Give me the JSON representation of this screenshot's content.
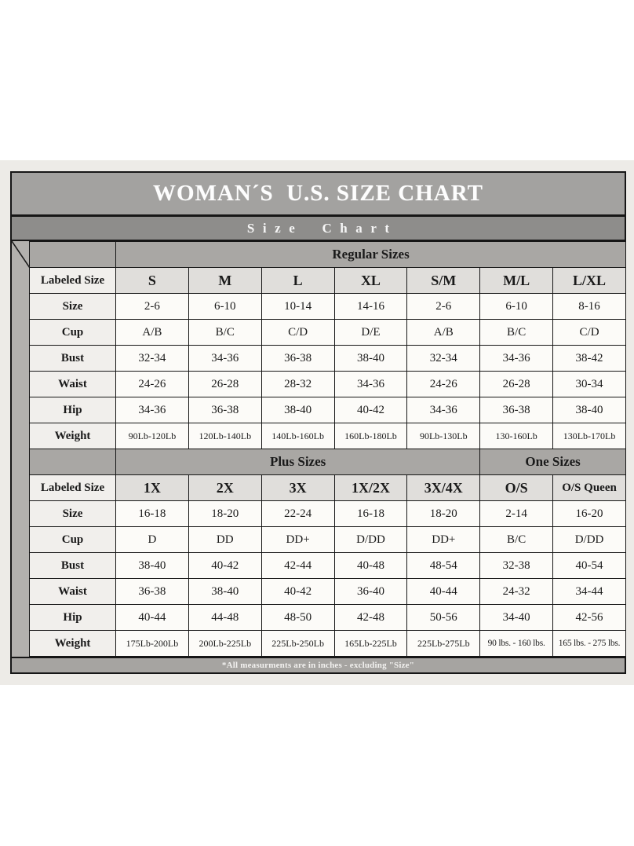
{
  "header": {
    "title": "WOMAN´S  U.S. SIZE CHART",
    "subtitle": "Size Chart"
  },
  "footnote": {
    "text": "*All measurments are in inches - excluding \"Size\""
  },
  "colors": {
    "title_band": "#a3a2a0",
    "subtitle_band": "#8e8d8b",
    "section_band": "#a9a7a4",
    "column_header": "#e0dedb",
    "row_label": "#f1efec",
    "data_cell": "#fcfbf8",
    "gutter": "#b3b1ae",
    "footnote_band": "#a6a4a1",
    "border": "#161616",
    "backdrop": "#edebe7"
  },
  "table": {
    "header_row_label": "Labeled Size",
    "sections": [
      {
        "bands": [
          {
            "label": "Regular Sizes",
            "span": 7
          }
        ],
        "columns": [
          "S",
          "M",
          "L",
          "XL",
          "S/M",
          "M/L",
          "L/XL"
        ],
        "rows": [
          {
            "label": "Size",
            "values": [
              "2-6",
              "6-10",
              "10-14",
              "14-16",
              "2-6",
              "6-10",
              "8-16"
            ]
          },
          {
            "label": "Cup",
            "values": [
              "A/B",
              "B/C",
              "C/D",
              "D/E",
              "A/B",
              "B/C",
              "C/D"
            ]
          },
          {
            "label": "Bust",
            "values": [
              "32-34",
              "34-36",
              "36-38",
              "38-40",
              "32-34",
              "34-36",
              "38-42"
            ]
          },
          {
            "label": "Waist",
            "values": [
              "24-26",
              "26-28",
              "28-32",
              "34-36",
              "24-26",
              "26-28",
              "30-34"
            ]
          },
          {
            "label": "Hip",
            "values": [
              "34-36",
              "36-38",
              "38-40",
              "40-42",
              "34-36",
              "36-38",
              "38-40"
            ]
          },
          {
            "label": "Weight",
            "values": [
              "90Lb-120Lb",
              "120Lb-140Lb",
              "140Lb-160Lb",
              "160Lb-180Lb",
              "90Lb-130Lb",
              "130-160Lb",
              "130Lb-170Lb"
            ]
          }
        ]
      },
      {
        "bands": [
          {
            "label": "Plus Sizes",
            "span": 5
          },
          {
            "label": "One Sizes",
            "span": 2
          }
        ],
        "columns": [
          "1X",
          "2X",
          "3X",
          "1X/2X",
          "3X/4X",
          "O/S",
          "O/S Queen"
        ],
        "rows": [
          {
            "label": "Size",
            "values": [
              "16-18",
              "18-20",
              "22-24",
              "16-18",
              "18-20",
              "2-14",
              "16-20"
            ]
          },
          {
            "label": "Cup",
            "values": [
              "D",
              "DD",
              "DD+",
              "D/DD",
              "DD+",
              "B/C",
              "D/DD"
            ]
          },
          {
            "label": "Bust",
            "values": [
              "38-40",
              "40-42",
              "42-44",
              "40-48",
              "48-54",
              "32-38",
              "40-54"
            ]
          },
          {
            "label": "Waist",
            "values": [
              "36-38",
              "38-40",
              "40-42",
              "36-40",
              "40-44",
              "24-32",
              "34-44"
            ]
          },
          {
            "label": "Hip",
            "values": [
              "40-44",
              "44-48",
              "48-50",
              "42-48",
              "50-56",
              "34-40",
              "42-56"
            ]
          },
          {
            "label": "Weight",
            "values": [
              "175Lb-200Lb",
              "200Lb-225Lb",
              "225Lb-250Lb",
              "165Lb-225Lb",
              "225Lb-275Lb",
              "90 lbs. - 160 lbs.",
              "165 lbs. - 275 lbs."
            ]
          }
        ]
      }
    ]
  }
}
